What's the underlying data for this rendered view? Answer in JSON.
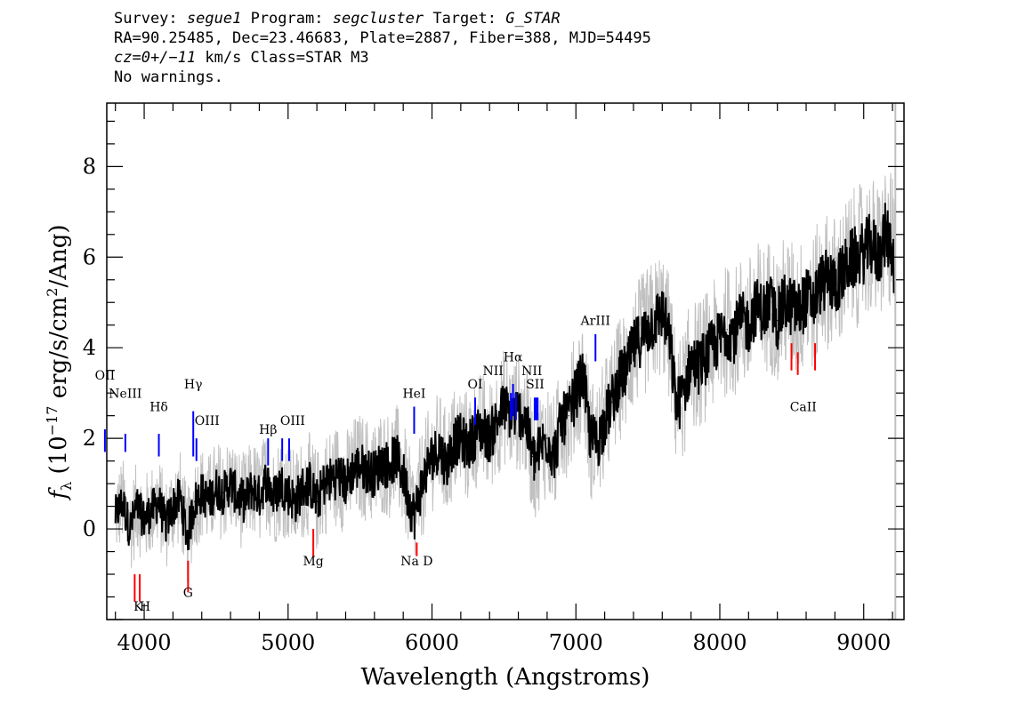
{
  "header": {
    "survey_label": "Survey:",
    "survey_value": "segue1",
    "program_label": "Program:",
    "program_value": "segcluster",
    "target_label": "Target:",
    "target_value": "G_STAR",
    "line2": "RA=90.25485, Dec=23.46683, Plate=2887, Fiber=388, MJD=54495",
    "cz_value": "cz=0+/−11",
    "cz_rest": " km/s Class=STAR M3",
    "line4": "No warnings."
  },
  "chart_data": {
    "type": "line",
    "xlabel": "Wavelength (Angstroms)",
    "ylabel_text": "(10",
    "ylabel_exp": "−17",
    "ylabel_rest": " erg/s/cm",
    "ylabel_exp2": "2",
    "ylabel_end": "/Ang)",
    "ylabel_symbol": "f",
    "ylabel_sub": "λ",
    "xlim": [
      3740,
      9280
    ],
    "ylim": [
      -2.0,
      9.4
    ],
    "x_ticks": [
      4000,
      5000,
      6000,
      7000,
      8000,
      9000
    ],
    "y_ticks": [
      0,
      2,
      4,
      6,
      8
    ],
    "x_tick_labels": [
      "4000",
      "5000",
      "6000",
      "7000",
      "8000",
      "9000"
    ],
    "y_tick_labels": [
      "0",
      "2",
      "4",
      "6",
      "8"
    ],
    "series": [
      {
        "role": "flux",
        "color": "#000000",
        "x": [
          3800,
          3850,
          3900,
          3950,
          4000,
          4050,
          4100,
          4150,
          4200,
          4250,
          4300,
          4350,
          4400,
          4450,
          4500,
          4550,
          4600,
          4650,
          4700,
          4750,
          4800,
          4850,
          4900,
          4950,
          5000,
          5050,
          5100,
          5150,
          5200,
          5250,
          5300,
          5350,
          5400,
          5450,
          5500,
          5550,
          5600,
          5650,
          5700,
          5750,
          5800,
          5850,
          5880,
          5900,
          5950,
          6000,
          6050,
          6100,
          6150,
          6200,
          6250,
          6300,
          6350,
          6400,
          6450,
          6500,
          6550,
          6600,
          6650,
          6700,
          6720,
          6750,
          6800,
          6850,
          6900,
          6950,
          7000,
          7050,
          7100,
          7150,
          7200,
          7250,
          7300,
          7350,
          7400,
          7450,
          7500,
          7550,
          7600,
          7650,
          7700,
          7750,
          7800,
          7850,
          7900,
          7950,
          8000,
          8050,
          8100,
          8150,
          8200,
          8250,
          8300,
          8350,
          8400,
          8450,
          8500,
          8550,
          8600,
          8650,
          8700,
          8750,
          8800,
          8850,
          8900,
          8950,
          9000,
          9050,
          9100,
          9150,
          9200,
          9220
        ],
        "y": [
          0.3,
          0.6,
          0.0,
          0.5,
          0.2,
          0.4,
          0.6,
          0.1,
          0.5,
          0.7,
          -0.2,
          0.6,
          0.8,
          0.6,
          0.9,
          0.8,
          1.0,
          0.7,
          0.6,
          0.9,
          0.7,
          1.1,
          0.7,
          1.0,
          0.8,
          0.6,
          0.9,
          1.0,
          0.6,
          1.0,
          1.1,
          1.2,
          1.0,
          1.3,
          1.4,
          1.3,
          1.2,
          1.5,
          1.4,
          1.6,
          1.2,
          0.5,
          0.3,
          0.6,
          1.2,
          1.6,
          1.8,
          1.4,
          1.9,
          2.0,
          1.8,
          2.1,
          2.2,
          2.0,
          2.4,
          2.7,
          2.5,
          2.6,
          2.4,
          1.6,
          1.5,
          1.8,
          2.0,
          1.6,
          2.4,
          2.5,
          3.0,
          3.4,
          2.0,
          1.9,
          2.4,
          2.8,
          3.3,
          3.5,
          4.0,
          4.2,
          4.4,
          4.6,
          4.8,
          4.2,
          2.7,
          3.0,
          3.7,
          3.6,
          3.8,
          4.0,
          4.2,
          4.4,
          4.3,
          4.6,
          4.5,
          4.9,
          4.8,
          5.0,
          4.6,
          5.0,
          4.9,
          4.8,
          5.1,
          5.0,
          5.4,
          5.5,
          5.4,
          5.6,
          5.9,
          6.0,
          6.1,
          6.3,
          6.0,
          6.5,
          6.2,
          5.5
        ]
      }
    ],
    "lines": [
      {
        "label": "OII",
        "x": 3727,
        "kind": "emission",
        "color": "#0000ff",
        "text": "OII"
      },
      {
        "label": "NeIII",
        "x": 3869,
        "kind": "emission",
        "color": "#0000ff",
        "text": "NeIII"
      },
      {
        "label": "Hδ",
        "x": 4102,
        "kind": "emission",
        "color": "#0000ff",
        "text": "Hδ"
      },
      {
        "label": "Hγ",
        "x": 4341,
        "kind": "emission",
        "color": "#0000ff",
        "text": "Hγ"
      },
      {
        "label": "OIII",
        "x": 4363,
        "kind": "emission",
        "color": "#0000ff",
        "text": "OIII"
      },
      {
        "label": "Hβ",
        "x": 4861,
        "kind": "emission",
        "color": "#0000ff",
        "text": "Hβ"
      },
      {
        "label": "OIII",
        "x": 4959,
        "kind": "emission",
        "color": "#0000ff",
        "text": ""
      },
      {
        "label": "OIII",
        "x": 5007,
        "kind": "emission",
        "color": "#0000ff",
        "text": "OIII"
      },
      {
        "label": "HeI",
        "x": 5876,
        "kind": "emission",
        "color": "#0000ff",
        "text": "HeI"
      },
      {
        "label": "OI",
        "x": 6300,
        "kind": "emission",
        "color": "#0000ff",
        "text": "OI"
      },
      {
        "label": "NII",
        "x": 6548,
        "kind": "emission",
        "color": "#0000ff",
        "text": "NII"
      },
      {
        "label": "Hα",
        "x": 6563,
        "kind": "emission",
        "color": "#0000ff",
        "text": "Hα"
      },
      {
        "label": "NII",
        "x": 6583,
        "kind": "emission",
        "color": "#0000ff",
        "text": "NII"
      },
      {
        "label": "SII",
        "x": 6717,
        "kind": "emission",
        "color": "#0000ff",
        "text": "SII"
      },
      {
        "label": "SII",
        "x": 6731,
        "kind": "emission",
        "color": "#0000ff",
        "text": ""
      },
      {
        "label": "ArIII",
        "x": 7136,
        "kind": "emission",
        "color": "#0000ff",
        "text": "ArIII"
      },
      {
        "label": "K",
        "x": 3934,
        "kind": "absorption",
        "color": "#ff0000",
        "text": "K"
      },
      {
        "label": "H",
        "x": 3969,
        "kind": "absorption",
        "color": "#ff0000",
        "text": "H"
      },
      {
        "label": "G",
        "x": 4305,
        "kind": "absorption",
        "color": "#ff0000",
        "text": "G"
      },
      {
        "label": "Mg",
        "x": 5175,
        "kind": "absorption",
        "color": "#ff0000",
        "text": "Mg"
      },
      {
        "label": "Na D",
        "x": 5894,
        "kind": "absorption",
        "color": "#ff0000",
        "text": "Na D"
      },
      {
        "label": "CaII",
        "x": 8498,
        "kind": "absorption",
        "color": "#ff0000",
        "text": "CaII"
      },
      {
        "label": "CaII",
        "x": 8542,
        "kind": "absorption",
        "color": "#ff0000",
        "text": ""
      },
      {
        "label": "CaII",
        "x": 8662,
        "kind": "absorption",
        "color": "#ff0000",
        "text": ""
      }
    ],
    "grid": false,
    "legend": "none"
  }
}
